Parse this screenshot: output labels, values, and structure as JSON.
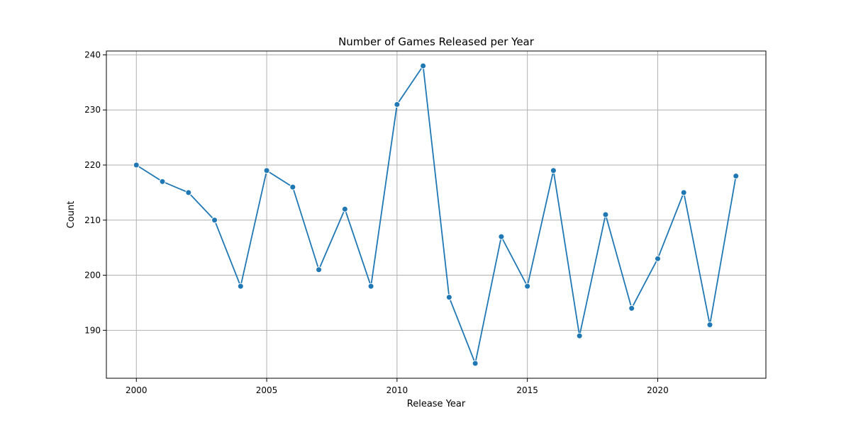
{
  "chart_data": {
    "type": "line",
    "title": "Number of Games Released per Year",
    "xlabel": "Release Year",
    "ylabel": "Count",
    "xlim": [
      1998.85,
      2024.15
    ],
    "ylim": [
      181.3,
      240.7
    ],
    "xticks": [
      2000,
      2005,
      2010,
      2015,
      2020
    ],
    "yticks": [
      190,
      200,
      210,
      220,
      230,
      240
    ],
    "grid": true,
    "colors": {
      "series": "#1f77b4",
      "grid": "#b0b0b0",
      "axis": "#000000"
    },
    "series": [
      {
        "x": [
          2000,
          2001,
          2002,
          2003,
          2004,
          2005,
          2006,
          2007,
          2008,
          2009,
          2010,
          2011,
          2012,
          2013,
          2014,
          2015,
          2016,
          2017,
          2018,
          2019,
          2020,
          2021,
          2022,
          2023
        ],
        "values": [
          220,
          217,
          215,
          210,
          198,
          219,
          216,
          201,
          212,
          198,
          231,
          238,
          196,
          184,
          207,
          198,
          219,
          189,
          211,
          194,
          203,
          215,
          191,
          218
        ]
      }
    ]
  }
}
